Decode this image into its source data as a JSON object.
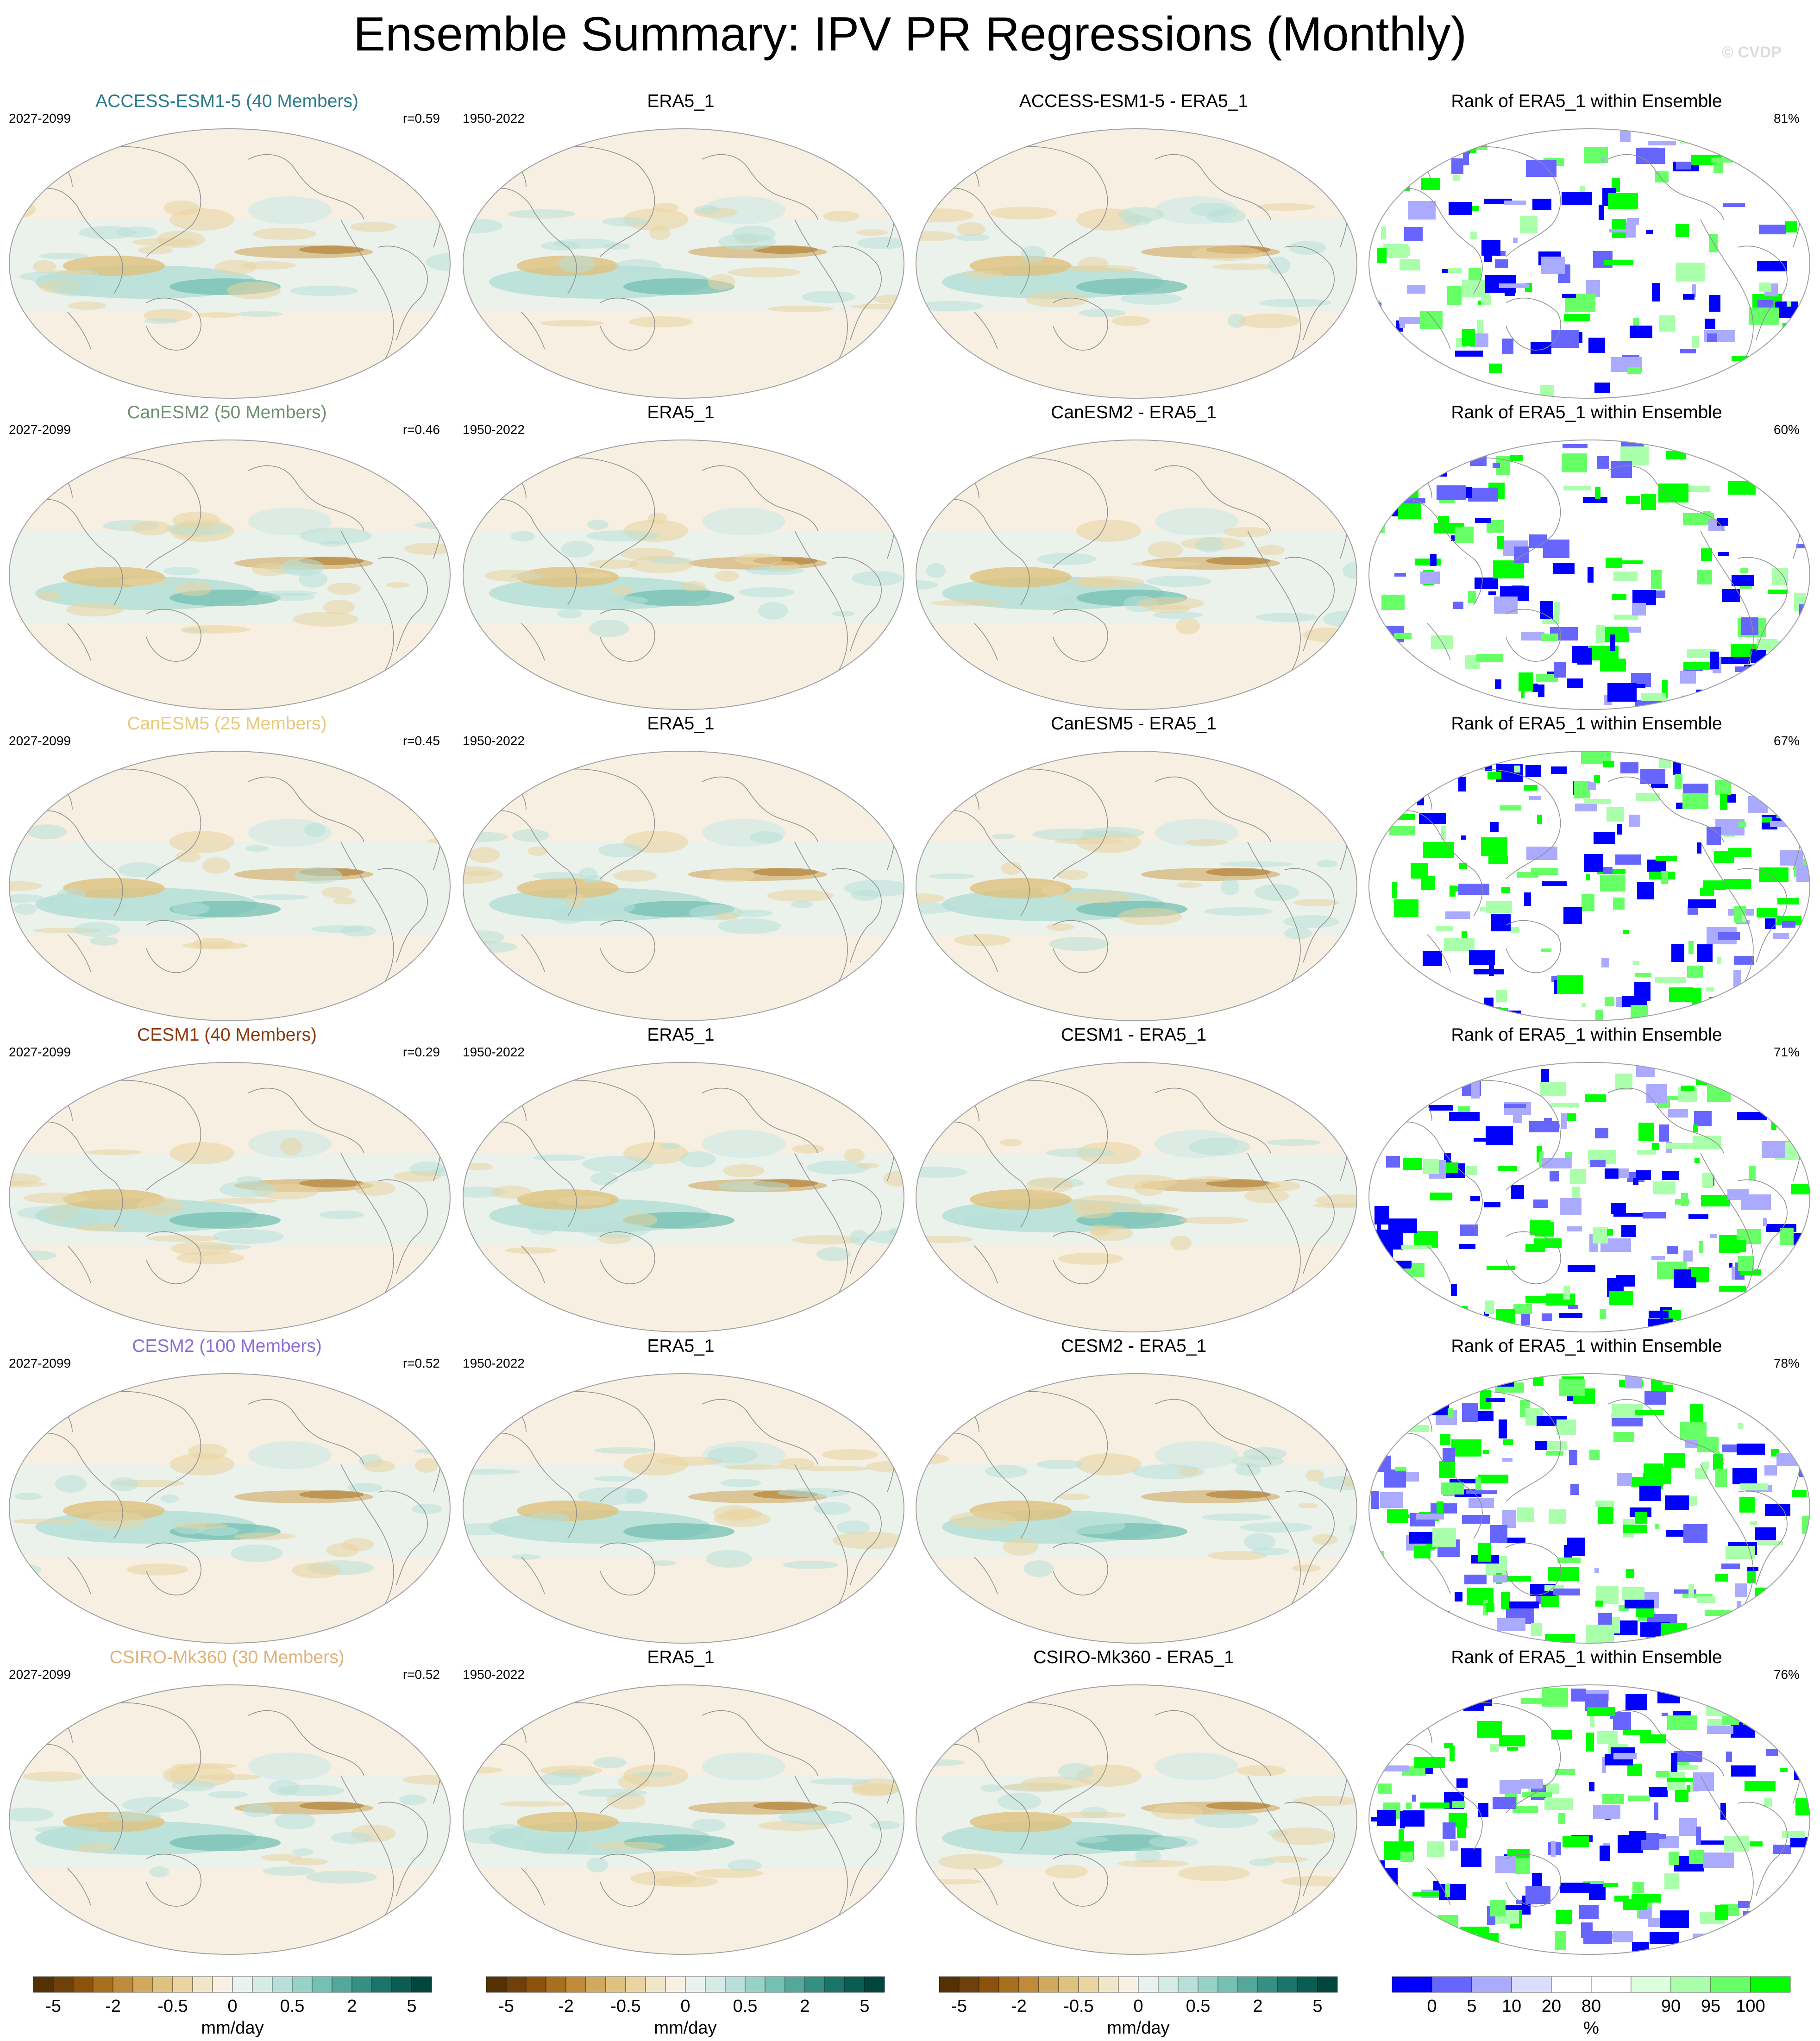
{
  "title": "Ensemble Summary: IPV PR Regressions (Monthly)",
  "watermark": "© CVDP",
  "rows": [
    {
      "model_title": "ACCESS-ESM1-5 (40 Members)",
      "title_color": "#2b7b8c",
      "model_period": "2027-2099",
      "pattern_corr": "r=0.59",
      "obs_title": "ERA5_1",
      "obs_period": "1950-2022",
      "diff_title": "ACCESS-ESM1-5 - ERA5_1",
      "rank_title": "Rank of ERA5_1 within Ensemble",
      "rank_pct": "81%"
    },
    {
      "model_title": "CanESM2 (50 Members)",
      "title_color": "#6e9170",
      "model_period": "2027-2099",
      "pattern_corr": "r=0.46",
      "obs_title": "ERA5_1",
      "obs_period": "1950-2022",
      "diff_title": "CanESM2 - ERA5_1",
      "rank_title": "Rank of ERA5_1 within Ensemble",
      "rank_pct": "60%"
    },
    {
      "model_title": "CanESM5 (25 Members)",
      "title_color": "#e8c97c",
      "model_period": "2027-2099",
      "pattern_corr": "r=0.45",
      "obs_title": "ERA5_1",
      "obs_period": "1950-2022",
      "diff_title": "CanESM5 - ERA5_1",
      "rank_title": "Rank of ERA5_1 within Ensemble",
      "rank_pct": "67%"
    },
    {
      "model_title": "CESM1 (40 Members)",
      "title_color": "#8b3a0e",
      "model_period": "2027-2099",
      "pattern_corr": "r=0.29",
      "obs_title": "ERA5_1",
      "obs_period": "1950-2022",
      "diff_title": "CESM1 - ERA5_1",
      "rank_title": "Rank of ERA5_1 within Ensemble",
      "rank_pct": "71%"
    },
    {
      "model_title": "CESM2 (100 Members)",
      "title_color": "#8a6ed6",
      "model_period": "2027-2099",
      "pattern_corr": "r=0.52",
      "obs_title": "ERA5_1",
      "obs_period": "1950-2022",
      "diff_title": "CESM2 - ERA5_1",
      "rank_title": "Rank of ERA5_1 within Ensemble",
      "rank_pct": "78%"
    },
    {
      "model_title": "CSIRO-Mk360 (30 Members)",
      "title_color": "#e0b27a",
      "model_period": "2027-2099",
      "pattern_corr": "r=0.52",
      "obs_title": "ERA5_1",
      "obs_period": "1950-2022",
      "diff_title": "CSIRO-Mk360 - ERA5_1",
      "rank_title": "Rank of ERA5_1 within Ensemble",
      "rank_pct": "76%"
    }
  ],
  "colorbar_pr": {
    "unit": "mm/day",
    "labels": [
      "-5",
      "-2",
      "-0.5",
      "0",
      "0.5",
      "2",
      "5"
    ],
    "colors": [
      "#543005",
      "#6d400c",
      "#8c510a",
      "#a8701e",
      "#bf8a3a",
      "#d1a95e",
      "#dfc27d",
      "#ead4a1",
      "#f2e6c8",
      "#f8f0e0",
      "#e9f2f0",
      "#d5ebe6",
      "#b8e0d8",
      "#97d2c6",
      "#74c0b2",
      "#53a89b",
      "#358f82",
      "#1b7469",
      "#0b5c52",
      "#01463d"
    ]
  },
  "colorbar_rank": {
    "unit": "%",
    "labels": [
      "0",
      "5",
      "10",
      "20",
      "80",
      "90",
      "95",
      "100"
    ],
    "colors": [
      "#0000ff",
      "#6666ff",
      "#aaaaff",
      "#dcdcff",
      "#ffffff",
      "#ffffff",
      "#dcffdc",
      "#aaffaa",
      "#66ff66",
      "#00ff00"
    ]
  }
}
